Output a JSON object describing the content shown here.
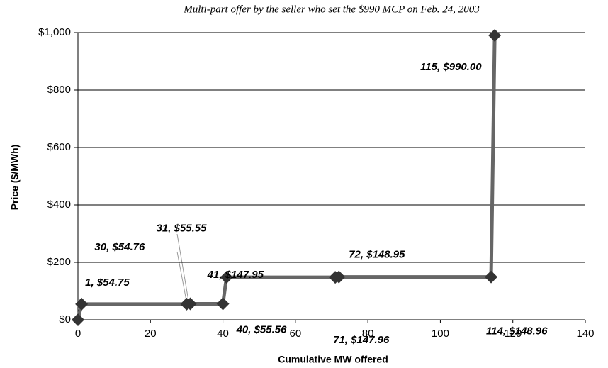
{
  "chart_data": {
    "type": "line",
    "title": "Multi-part offer by the seller who set the $990 MCP on Feb. 24, 2003",
    "xlabel": "Cumulative MW offered",
    "ylabel": "Price ($/MWh)",
    "x": [
      0,
      1,
      30,
      31,
      40,
      41,
      71,
      72,
      114,
      115
    ],
    "values": [
      0,
      54.75,
      54.76,
      55.55,
      55.56,
      147.95,
      147.96,
      148.95,
      148.96,
      990
    ],
    "value_labels": [
      null,
      "1,  $54.75",
      "30,  $54.76",
      "31,  $55.55",
      "40,  $55.56",
      "41,  $147.95",
      "71,  $147.96",
      "72,  $148.95",
      "114,  $148.96",
      "115,  $990.00"
    ],
    "color": "#666666",
    "marker_color": "#333333",
    "xlim": [
      0,
      140
    ],
    "xticks": [
      0,
      20,
      40,
      60,
      80,
      100,
      120,
      140
    ],
    "ylim": [
      0,
      1000
    ],
    "yticks": [
      {
        "value": 0,
        "label": "$0"
      },
      {
        "value": 200,
        "label": "$200"
      },
      {
        "value": 400,
        "label": "$400"
      },
      {
        "value": 600,
        "label": "$600"
      },
      {
        "value": 800,
        "label": "$800"
      },
      {
        "value": 1000,
        "label": "$1,000"
      }
    ],
    "grid": true
  }
}
